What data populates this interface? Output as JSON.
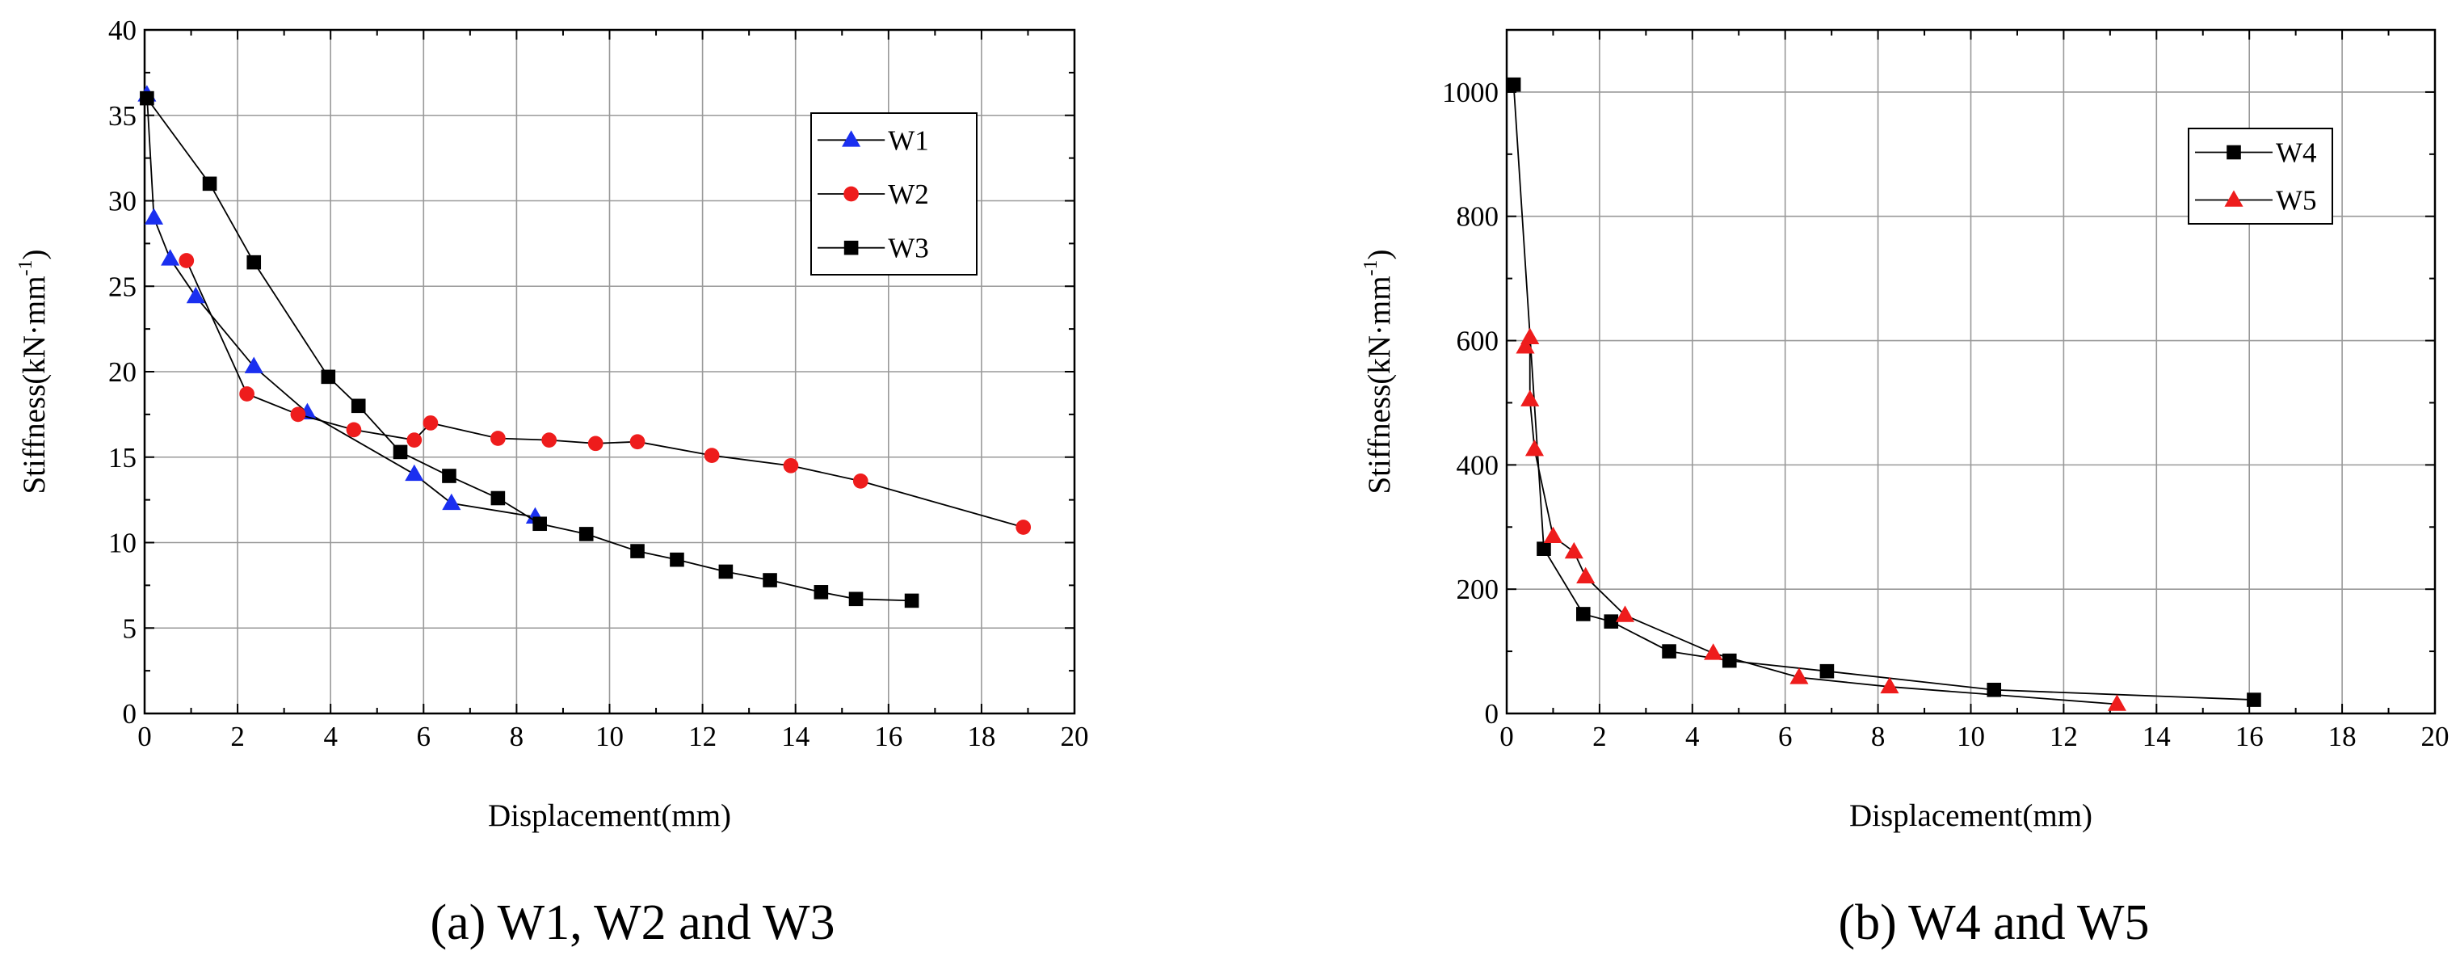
{
  "colors": {
    "W1": "#1a2ff0",
    "W2": "#ee1c1c",
    "W3": "#000000",
    "W4": "#000000",
    "W5": "#ee1c1c"
  },
  "chart_data": [
    {
      "type": "line",
      "caption": "(a) W1, W2 and W3",
      "xlabel": "Displacement(mm)",
      "ylabel_main": "Stiffness(kN·mm",
      "ylabel_sup": "-1",
      "ylabel_close": ")",
      "xlim": [
        0,
        20
      ],
      "ylim": [
        0,
        40
      ],
      "xticks": [
        "0",
        "2",
        "4",
        "6",
        "8",
        "10",
        "12",
        "14",
        "16",
        "18",
        "20"
      ],
      "yticks": [
        "0",
        "5",
        "10",
        "15",
        "20",
        "25",
        "30",
        "35",
        "40"
      ],
      "grid": true,
      "legend_position": "top-right",
      "series": [
        {
          "name": "W1",
          "marker": "triangle",
          "color": "#1a2ff0",
          "x": [
            0.05,
            0.2,
            0.55,
            1.1,
            2.35,
            3.5,
            5.8,
            6.6,
            8.4
          ],
          "y": [
            36.2,
            29.0,
            26.6,
            24.4,
            20.3,
            17.6,
            14.0,
            12.3,
            11.5
          ]
        },
        {
          "name": "W2",
          "marker": "circle",
          "color": "#ee1c1c",
          "x": [
            0.9,
            2.2,
            3.3,
            4.5,
            5.8,
            6.15,
            7.6,
            8.7,
            9.7,
            10.6,
            12.2,
            13.9,
            15.4,
            18.9
          ],
          "y": [
            26.5,
            18.7,
            17.5,
            16.6,
            16.0,
            17.0,
            16.1,
            16.0,
            15.8,
            15.9,
            15.1,
            14.5,
            13.6,
            10.9
          ]
        },
        {
          "name": "W3",
          "marker": "square",
          "color": "#000000",
          "x": [
            0.05,
            1.4,
            2.35,
            3.95,
            4.6,
            5.5,
            6.55,
            7.6,
            8.5,
            9.5,
            10.6,
            11.45,
            12.5,
            13.45,
            14.55,
            15.3,
            16.5
          ],
          "y": [
            36.0,
            31.0,
            26.4,
            19.7,
            18.0,
            15.3,
            13.9,
            12.6,
            11.1,
            10.5,
            9.5,
            9.0,
            8.3,
            7.8,
            7.1,
            6.7,
            6.6
          ]
        }
      ]
    },
    {
      "type": "line",
      "caption": "(b) W4 and W5",
      "xlabel": "Displacement(mm)",
      "ylabel_main": "Stiffness(kN·mm",
      "ylabel_sup": "-1",
      "ylabel_close": ")",
      "xlim": [
        0,
        20
      ],
      "ylim": [
        0,
        1100
      ],
      "xticks": [
        "0",
        "2",
        "4",
        "6",
        "8",
        "10",
        "12",
        "14",
        "16",
        "18",
        "20"
      ],
      "yticks": [
        "0",
        "200",
        "400",
        "600",
        "800",
        "1000"
      ],
      "grid": true,
      "legend_position": "top-right",
      "series": [
        {
          "name": "W4",
          "marker": "square",
          "color": "#000000",
          "x": [
            0.15,
            0.8,
            1.65,
            2.25,
            3.5,
            4.8,
            6.9,
            10.5,
            16.1
          ],
          "y": [
            1012,
            265,
            160,
            148,
            100,
            85,
            68,
            38,
            22
          ]
        },
        {
          "name": "W5",
          "marker": "triangle",
          "color": "#ee1c1c",
          "x": [
            0.4,
            0.5,
            0.5,
            0.6,
            1.0,
            1.45,
            1.7,
            2.55,
            4.45,
            6.3,
            8.25,
            13.15
          ],
          "y": [
            590,
            605,
            505,
            425,
            285,
            260,
            220,
            158,
            97,
            58,
            43,
            15
          ]
        }
      ]
    }
  ]
}
